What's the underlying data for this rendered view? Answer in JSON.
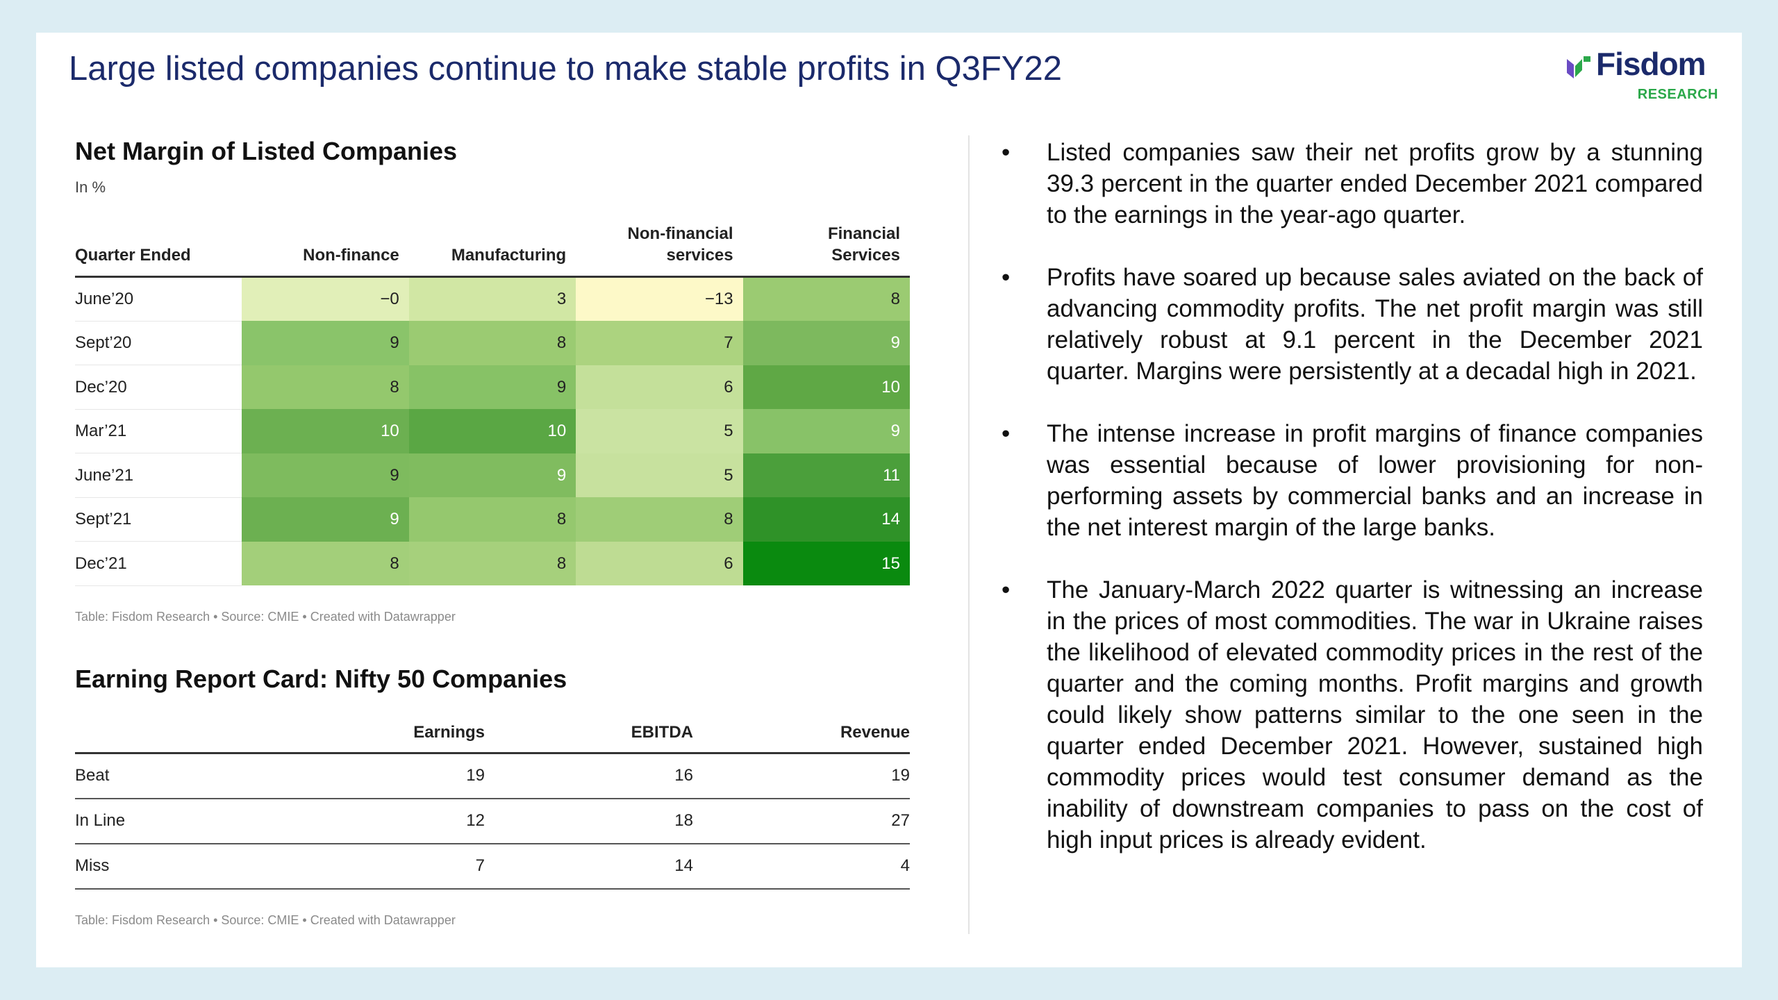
{
  "slide": {
    "title": "Large listed companies continue to make stable profits in Q3FY22"
  },
  "logo": {
    "name": "Fisdom",
    "subtitle": "RESEARCH",
    "colors": {
      "text": "#1b2a6b",
      "accent": "#2ba84a",
      "mark": "#6a4bc4"
    }
  },
  "net_margin_table": {
    "title": "Net Margin of Listed Companies",
    "subtitle": "In %",
    "headers": [
      "Quarter Ended",
      "Non-finance",
      "Manufacturing",
      "Non-financial services",
      "Financial Services"
    ],
    "rows": [
      {
        "label": "June’20",
        "values": [
          "−0",
          "3",
          "−13",
          "8"
        ]
      },
      {
        "label": "Sept’20",
        "values": [
          "9",
          "8",
          "7",
          "9"
        ]
      },
      {
        "label": "Dec’20",
        "values": [
          "8",
          "9",
          "6",
          "10"
        ]
      },
      {
        "label": "Mar’21",
        "values": [
          "10",
          "10",
          "5",
          "9"
        ]
      },
      {
        "label": "June’21",
        "values": [
          "9",
          "9",
          "5",
          "11"
        ]
      },
      {
        "label": "Sept’21",
        "values": [
          "9",
          "8",
          "8",
          "14"
        ]
      },
      {
        "label": "Dec’21",
        "values": [
          "8",
          "8",
          "6",
          "15"
        ]
      }
    ],
    "footer": "Table: Fisdom Research • Source: CMIE • Created with Datawrapper"
  },
  "report_card": {
    "title": "Earning Report Card: Nifty 50 Companies",
    "headers": [
      "",
      "Earnings",
      "EBITDA",
      "Revenue"
    ],
    "rows": [
      {
        "label": "Beat",
        "values": [
          "19",
          "16",
          "19"
        ]
      },
      {
        "label": "In Line",
        "values": [
          "12",
          "18",
          "27"
        ]
      },
      {
        "label": "Miss",
        "values": [
          "7",
          "14",
          "4"
        ]
      }
    ],
    "footer": "Table: Fisdom Research • Source: CMIE • Created with Datawrapper"
  },
  "bullets": [
    "Listed companies saw their net profits grow by a stunning 39.3 percent in the quarter ended December 2021 compared to the earnings in the year-ago quarter.",
    "Profits have soared up because sales aviated on the back of advancing commodity profits. The net profit margin was still relatively robust at 9.1 percent in the December 2021 quarter. Margins were persistently at a decadal high in 2021.",
    "The intense increase in profit margins of finance companies was essential because of lower provisioning for non-performing assets by commercial banks and an increase in the net interest margin of the large banks.",
    "The January-March 2022 quarter is witnessing an increase in the prices of most commodities. The war in Ukraine raises the likelihood of elevated commodity prices in the rest of the quarter and the coming months. Profit margins and growth could likely show patterns similar to the one seen in the quarter ended December 2021. However, sustained high commodity prices would test consumer demand as the inability of downstream companies to pass on the cost of high input prices is already evident."
  ],
  "colors": {
    "title": "#1b2a6b",
    "background": "#dcedf3"
  }
}
